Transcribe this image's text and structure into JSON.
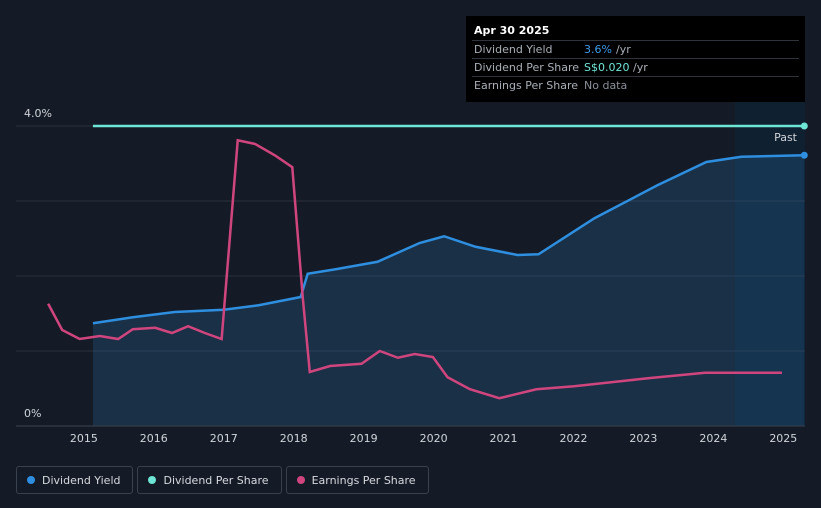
{
  "chart_data": {
    "type": "line",
    "xlim": [
      2014.03,
      2025.31
    ],
    "xticks": [
      2015,
      2016,
      2017,
      2018,
      2019,
      2020,
      2021,
      2022,
      2023,
      2024,
      2025
    ],
    "ylim": [
      0,
      4
    ],
    "yticks": [
      {
        "value": 0,
        "label": "0%"
      },
      {
        "value": 1,
        "label": null
      },
      {
        "value": 2,
        "label": null
      },
      {
        "value": 3,
        "label": null
      },
      {
        "value": 4,
        "label": "4.0%"
      }
    ],
    "grid": true,
    "past_label": "Past",
    "series": [
      {
        "name": "Dividend Yield",
        "color": "#2e8fe0",
        "area": true,
        "x": [
          2015.13,
          2015.7,
          2016.3,
          2017.0,
          2017.5,
          2018.1,
          2018.2,
          2018.6,
          2019.2,
          2019.8,
          2020.15,
          2020.6,
          2021.2,
          2021.5,
          2022.3,
          2023.2,
          2023.9,
          2024.4,
          2025.3
        ],
        "values": [
          1.37,
          1.45,
          1.52,
          1.55,
          1.61,
          1.72,
          2.03,
          2.09,
          2.19,
          2.44,
          2.53,
          2.39,
          2.28,
          2.29,
          2.77,
          3.21,
          3.52,
          3.59,
          3.61
        ]
      },
      {
        "name": "Dividend Per Share",
        "color": "#6ee6d6",
        "area": false,
        "x": [
          2015.13,
          2025.3
        ],
        "values": [
          4,
          4
        ]
      },
      {
        "name": "Earnings Per Share",
        "color": "#d1457e",
        "area": false,
        "x": [
          2014.49,
          2014.69,
          2014.94,
          2015.23,
          2015.49,
          2015.7,
          2016.02,
          2016.26,
          2016.49,
          2016.73,
          2016.97,
          2017.2,
          2017.45,
          2017.73,
          2017.98,
          2018.13,
          2018.23,
          2018.52,
          2018.97,
          2019.23,
          2019.49,
          2019.73,
          2019.99,
          2020.2,
          2020.52,
          2020.94,
          2021.47,
          2022.01,
          2023.1,
          2023.88,
          2024.98
        ],
        "values": [
          1.63,
          1.28,
          1.16,
          1.2,
          1.16,
          1.29,
          1.31,
          1.24,
          1.33,
          1.24,
          1.16,
          3.81,
          3.76,
          3.61,
          3.45,
          1.71,
          0.72,
          0.8,
          0.83,
          1.0,
          0.91,
          0.96,
          0.92,
          0.65,
          0.49,
          0.37,
          0.49,
          0.53,
          0.64,
          0.71,
          0.71
        ]
      }
    ]
  },
  "tooltip": {
    "date": "Apr 30 2025",
    "rows": [
      {
        "label": "Dividend Yield",
        "value": "3.6%",
        "unit": "/yr",
        "color": "#3d9be9"
      },
      {
        "label": "Dividend Per Share",
        "value": "S$0.020",
        "unit": "/yr",
        "color": "#6ee6d6"
      },
      {
        "label": "Earnings Per Share",
        "value": "No data",
        "unit": null,
        "color": "#8a9099"
      }
    ]
  }
}
